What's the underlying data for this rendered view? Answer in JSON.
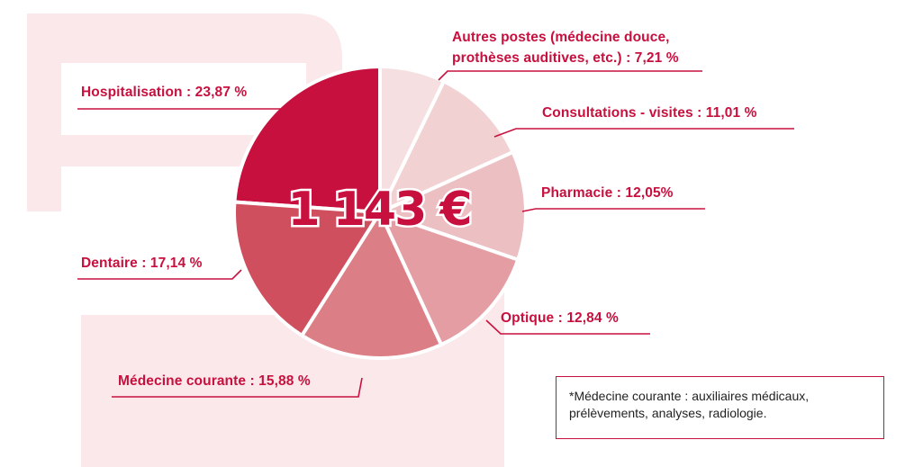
{
  "colors": {
    "accent": "#c8103e",
    "background_motif": "#fae8ea"
  },
  "chart_data": {
    "type": "pie",
    "title": "",
    "center_label": "1 143 €",
    "slices": [
      {
        "label": "Hospitalisation : 23,87 %",
        "value": 23.87,
        "color": "#c8103e"
      },
      {
        "label": "Autres postes (médecine douce, prothèses auditives, etc.) : 7,21 %",
        "value": 7.21,
        "color": "#f6dfe1"
      },
      {
        "label": "Consultations - visites : 11,01 %",
        "value": 11.01,
        "color": "#f2d1d3"
      },
      {
        "label": "Pharmacie : 12,05%",
        "value": 12.05,
        "color": "#ecbfc2"
      },
      {
        "label": "Optique : 12,84 %",
        "value": 12.84,
        "color": "#e49ea3"
      },
      {
        "label": "Médecine courante : 15,88 %",
        "value": 15.88,
        "color": "#dc7e85"
      },
      {
        "label": "Dentaire : 17,14 %",
        "value": 17.14,
        "color": "#cf4f5f"
      }
    ]
  },
  "labels": {
    "autres_line1": "Autres postes (médecine douce,",
    "autres_line2": "prothèses auditives, etc.) : 7,21 %",
    "hospitalisation": "Hospitalisation : 23,87 %",
    "consultations": "Consultations - visites : 11,01 %",
    "pharmacie": "Pharmacie : 12,05%",
    "dentaire": "Dentaire : 17,14 %",
    "optique": "Optique : 12,84 %",
    "medecine": "Médecine courante : 15,88 %"
  },
  "note": {
    "line1": "*Médecine courante : auxiliaires médicaux,",
    "line2": "prélèvements, analyses, radiologie."
  }
}
